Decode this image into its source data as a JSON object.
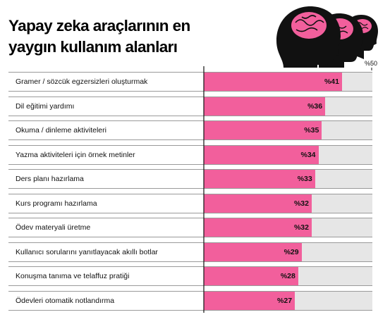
{
  "title": "Yapay zeka araçlarının en yaygın kullanım alanları",
  "axis_max_label": "%50",
  "colors": {
    "bar": "#f25f9c",
    "track": "#e6e6e6",
    "border": "#9a9a9a",
    "text": "#111111"
  },
  "decoration": {
    "icon": "three-head-profiles-with-pink-brains-icon"
  },
  "chart_data": {
    "type": "bar",
    "orientation": "horizontal",
    "xlim": [
      0,
      50
    ],
    "categories": [
      "Gramer / sözcük egzersizleri oluşturmak",
      "Dil eğitimi yardımı",
      "Okuma / dinleme aktiviteleri",
      "Yazma aktiviteleri için örnek metinler",
      "Ders planı hazırlama",
      "Kurs programı hazırlama",
      "Ödev materyali üretme",
      "Kullanıcı sorularını yanıtlayacak akıllı botlar",
      "Konuşma tanıma ve telaffuz pratiği",
      "Ödevleri otomatik notlandırma"
    ],
    "values": [
      41,
      36,
      35,
      34,
      33,
      32,
      32,
      29,
      28,
      27
    ],
    "value_labels": [
      "%41",
      "%36",
      "%35",
      "%34",
      "%33",
      "%32",
      "%32",
      "%29",
      "%28",
      "%27"
    ]
  }
}
